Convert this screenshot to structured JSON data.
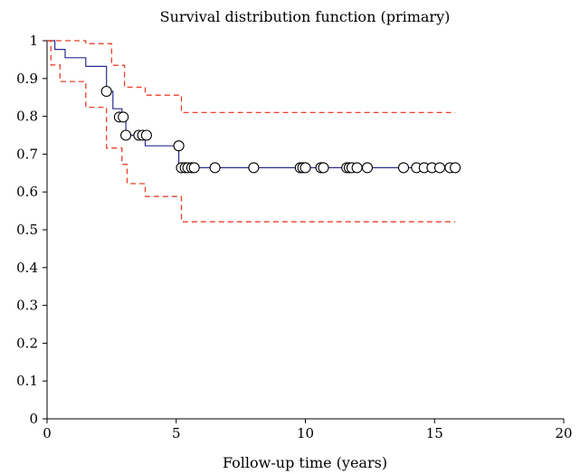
{
  "chart_data": {
    "type": "line",
    "title": "Survival distribution function (primary)",
    "xlabel": "Follow-up time (years)",
    "ylabel": "",
    "xlim": [
      0,
      20
    ],
    "ylim": [
      0,
      1
    ],
    "x_ticks": [
      "0",
      "5",
      "10",
      "15",
      "20"
    ],
    "y_ticks": [
      "0",
      "0.1",
      "0.2",
      "0.3",
      "0.4",
      "0.5",
      "0.6",
      "0.7",
      "0.8",
      "0.9",
      "1"
    ],
    "grid": false,
    "legend": "none",
    "series": [
      {
        "role": "estimate",
        "color": "#2b2b8f",
        "style": "step-solid",
        "x": [
          0,
          0.3,
          0.3,
          0.7,
          0.7,
          1.5,
          1.5,
          2.3,
          2.3,
          2.55,
          2.55,
          2.9,
          2.9,
          3.05,
          3.05,
          3.3,
          3.3,
          3.8,
          3.8,
          5.1,
          5.1,
          15.8
        ],
        "y": [
          1.0,
          1.0,
          0.977,
          0.977,
          0.955,
          0.955,
          0.932,
          0.932,
          0.866,
          0.866,
          0.82,
          0.82,
          0.798,
          0.798,
          0.75,
          0.75,
          0.75,
          0.75,
          0.722,
          0.722,
          0.664,
          0.664
        ]
      },
      {
        "role": "upper-bound",
        "color": "#e8402a",
        "style": "step-dashed",
        "x": [
          0,
          1.5,
          1.5,
          2.5,
          2.5,
          3.0,
          3.0,
          3.8,
          3.8,
          5.2,
          5.2,
          15.8
        ],
        "y": [
          1.0,
          1.0,
          0.992,
          0.992,
          0.935,
          0.935,
          0.877,
          0.877,
          0.856,
          0.856,
          0.81,
          0.81
        ]
      },
      {
        "role": "lower-bound",
        "color": "#e8402a",
        "style": "step-dashed",
        "x": [
          0,
          0.15,
          0.15,
          0.5,
          0.5,
          1.5,
          1.5,
          2.3,
          2.3,
          2.9,
          2.9,
          3.1,
          3.1,
          3.8,
          3.8,
          5.2,
          5.2,
          15.8
        ],
        "y": [
          1.0,
          1.0,
          0.936,
          0.936,
          0.892,
          0.892,
          0.824,
          0.824,
          0.716,
          0.716,
          0.673,
          0.673,
          0.622,
          0.622,
          0.588,
          0.588,
          0.521,
          0.521
        ]
      }
    ],
    "censored": {
      "marker": "open-circle",
      "x": [
        2.3,
        2.8,
        2.95,
        3.05,
        3.55,
        3.7,
        3.85,
        5.1,
        5.2,
        5.35,
        5.45,
        5.6,
        5.7,
        6.5,
        8.0,
        9.8,
        9.9,
        10.0,
        10.6,
        10.7,
        11.6,
        11.7,
        11.8,
        12.0,
        12.4,
        13.8,
        14.3,
        14.6,
        14.9,
        15.2,
        15.6,
        15.8
      ],
      "y": [
        0.866,
        0.798,
        0.798,
        0.75,
        0.75,
        0.75,
        0.75,
        0.722,
        0.664,
        0.664,
        0.664,
        0.664,
        0.664,
        0.664,
        0.664,
        0.664,
        0.664,
        0.664,
        0.664,
        0.664,
        0.664,
        0.664,
        0.664,
        0.664,
        0.664,
        0.664,
        0.664,
        0.664,
        0.664,
        0.664,
        0.664,
        0.664
      ]
    }
  }
}
